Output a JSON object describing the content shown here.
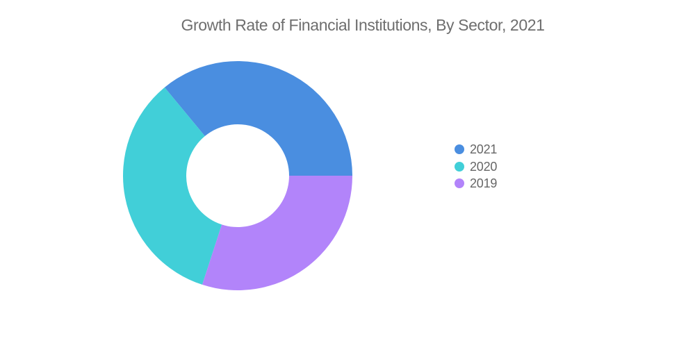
{
  "header": {
    "title": "Growth Rate of Financial Institutions, By Sector, 2021",
    "title_color": "#6e6e6e"
  },
  "legend": {
    "position": "right",
    "text_color": "#666666"
  },
  "chart_data": {
    "type": "pie",
    "subtype": "donut",
    "title": "Growth Rate of Financial Institutions, By Sector, 2021",
    "categories": [
      "2021",
      "2020",
      "2019"
    ],
    "values": [
      36,
      34,
      30
    ],
    "series_colors": [
      "#4A8EE0",
      "#41CFD8",
      "#B284FA"
    ],
    "start_angle_deg": 0,
    "direction": "counterclockwise",
    "inner_radius_ratio": 0.45,
    "legend_position": "right",
    "legend_entries": [
      "2021",
      "2020",
      "2019"
    ],
    "data_labels_shown": false
  }
}
